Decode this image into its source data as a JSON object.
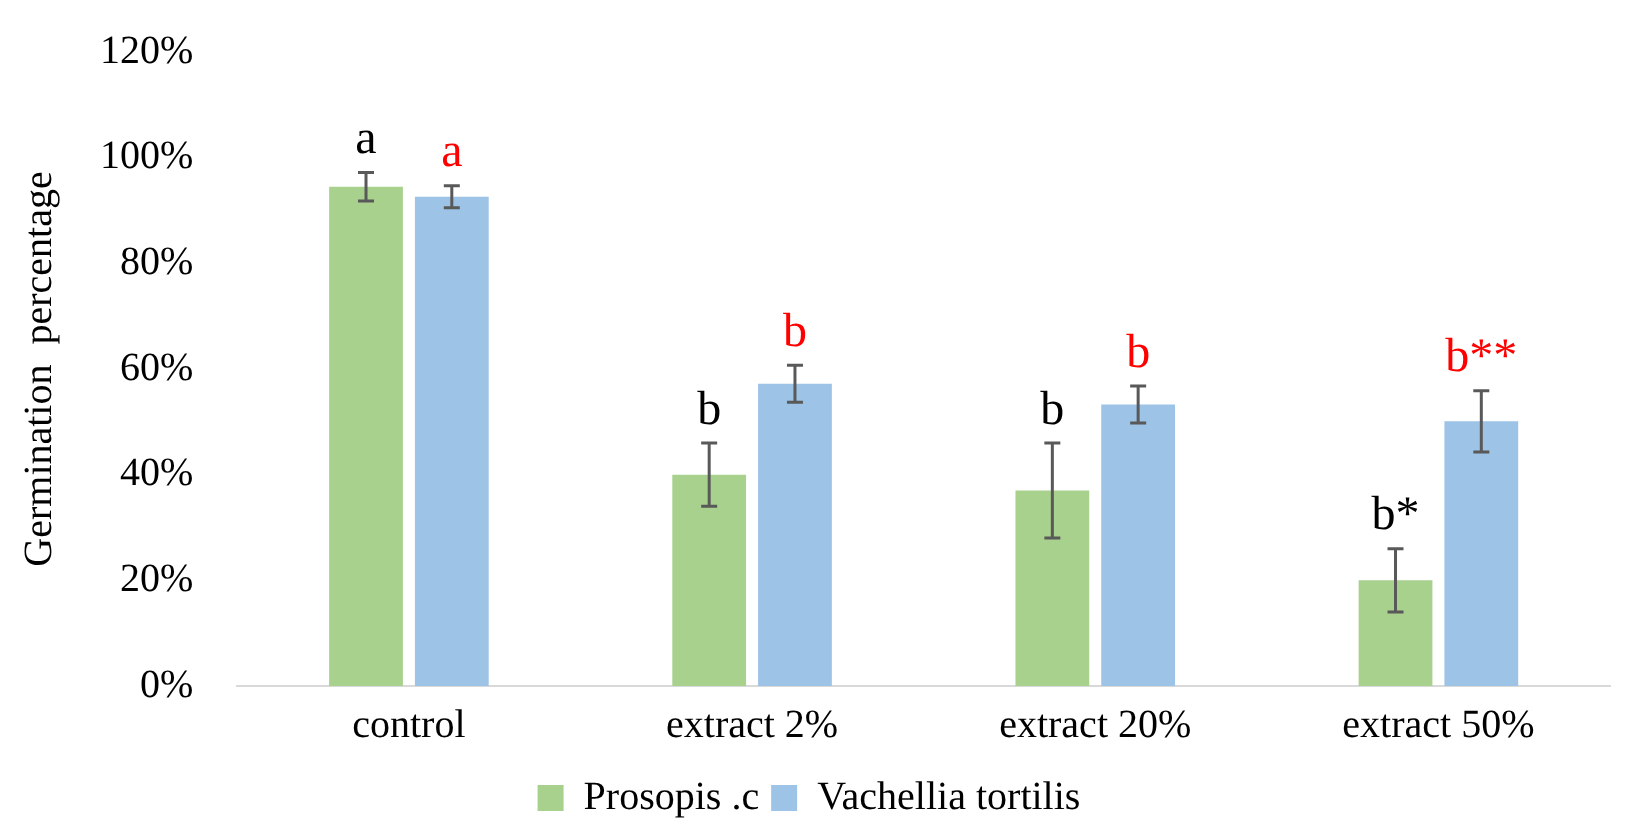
{
  "chart_data": {
    "type": "bar",
    "ylabel": "Germination  percentage",
    "categories": [
      "control",
      "extract 2%",
      "extract 20%",
      "extract 50%"
    ],
    "series": [
      {
        "name": "Prosopis .c",
        "color": "#a9d18e",
        "values": [
          94.5,
          40,
          37,
          20
        ],
        "errors": [
          2.7,
          6,
          9,
          6
        ],
        "value_labels": [
          "a",
          "b",
          "b",
          "b*"
        ]
      },
      {
        "name": "Vachellia tortilis",
        "color": "#9dc3e6",
        "values": [
          92.6,
          57.2,
          53.3,
          50.1
        ],
        "errors": [
          2.1,
          3.5,
          3.5,
          5.8
        ],
        "value_labels": [
          "a",
          "b",
          "b",
          "b**"
        ]
      }
    ],
    "ylim": [
      0,
      120
    ],
    "yticks": [
      {
        "value": 0,
        "label": "0%"
      },
      {
        "value": 20,
        "label": "20%"
      },
      {
        "value": 40,
        "label": "40%"
      },
      {
        "value": 60,
        "label": "60%"
      },
      {
        "value": 80,
        "label": "80%"
      },
      {
        "value": 100,
        "label": "100%"
      },
      {
        "value": 120,
        "label": "120%"
      }
    ],
    "grid": false,
    "legend": "bottom"
  }
}
